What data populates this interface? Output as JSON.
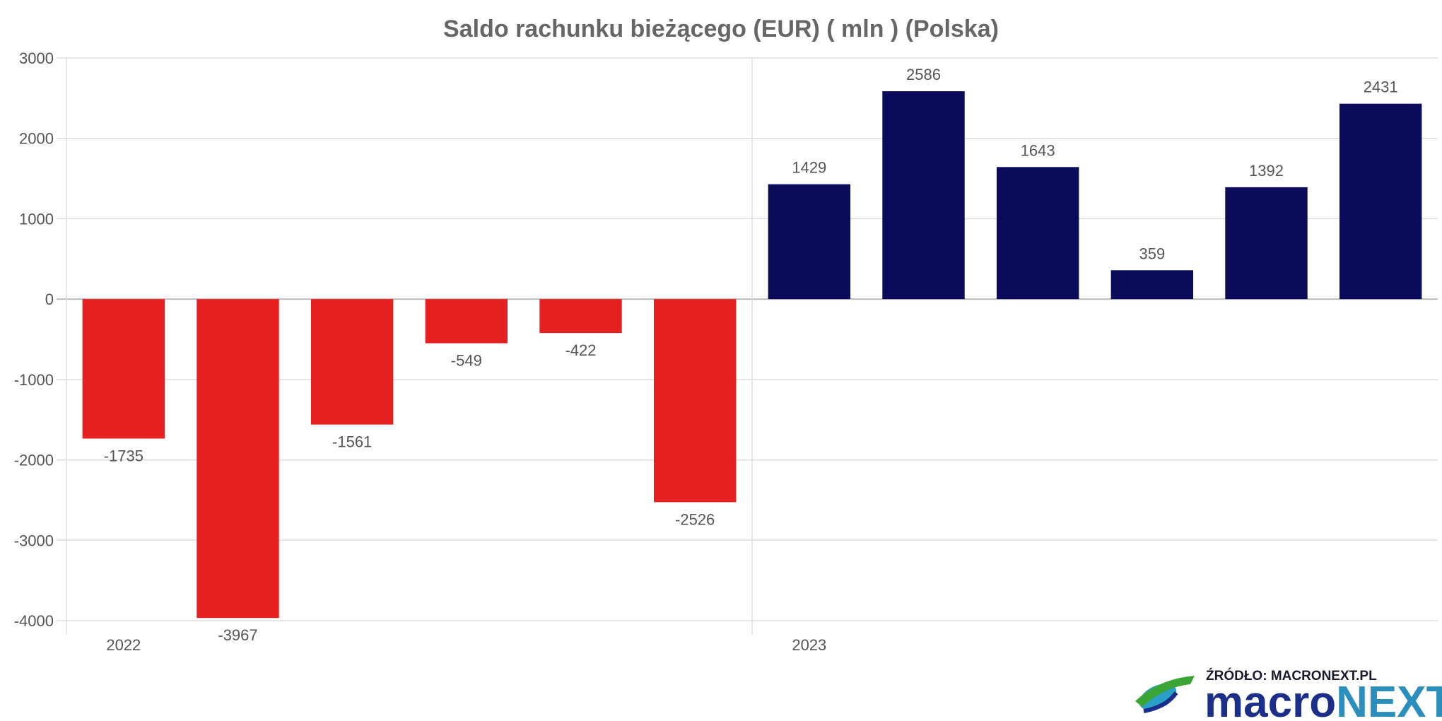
{
  "chart_data": {
    "type": "bar",
    "title": "Saldo rachunku bieżącego (EUR) ( mln ) (Polska)",
    "categories": [
      "2022",
      "",
      "",
      "",
      "",
      "",
      "2023",
      "",
      "",
      "",
      "",
      ""
    ],
    "values": [
      -1735,
      -3967,
      -1561,
      -549,
      -422,
      -2526,
      1429,
      2586,
      1643,
      359,
      1392,
      2431
    ],
    "value_labels": [
      "-1735",
      "-3967",
      "-1561",
      "-549",
      "-422",
      "-2526",
      "1429",
      "2586",
      "1643",
      "359",
      "1392",
      "2431"
    ],
    "yticks": [
      "3000",
      "2000",
      "1000",
      "0",
      "-1000",
      "-2000",
      "-3000",
      "-4000"
    ],
    "ylim": [
      -4000,
      3000
    ],
    "grid": true,
    "colors": {
      "negative": "#e62020",
      "positive": "#0b0b5c"
    }
  },
  "footer": {
    "source": "ŹRÓDŁO: MACRONEXT.PL",
    "brand_part1": "macro",
    "brand_part2": "NEXT"
  }
}
